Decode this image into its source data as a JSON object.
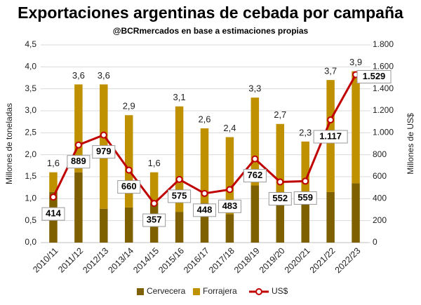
{
  "chart_data": {
    "type": "bar",
    "title": "Exportaciones argentinas de cebada por campaña",
    "subtitle": "@BCRmercados  en base a estimaciones propias",
    "y_label": "Millones de toneladas",
    "y2_label": "Millones de US$",
    "categories": [
      "2010/11",
      "2011/12",
      "2012/13",
      "2013/14",
      "2014/15",
      "2015/16",
      "2016/17",
      "2017/18",
      "2018/19",
      "2019/20",
      "2020/21",
      "2021/22",
      "2022/23"
    ],
    "series": [
      {
        "name": "Cervecera",
        "color": "#7f6000",
        "values": [
          1.15,
          1.6,
          0.77,
          0.8,
          0.9,
          0.7,
          0.9,
          0.65,
          1.3,
          0.9,
          0.9,
          1.15,
          1.35
        ]
      },
      {
        "name": "Forrajera",
        "color": "#bf9000",
        "values": [
          0.45,
          2.0,
          2.83,
          2.1,
          0.7,
          2.4,
          1.7,
          1.75,
          2.0,
          1.8,
          1.4,
          2.55,
          2.55
        ]
      },
      {
        "name": "US$",
        "color": "#c00000",
        "type": "line",
        "axis": "y2",
        "values": [
          414,
          889,
          979,
          660,
          357,
          575,
          448,
          483,
          762,
          552,
          559,
          1117,
          1529
        ],
        "value_labels": [
          "414",
          "889",
          "979",
          "660",
          "357",
          "575",
          "448",
          "483",
          "762",
          "552",
          "559",
          "1.117",
          "1.529"
        ]
      }
    ],
    "totals": {
      "values": [
        1.6,
        3.6,
        3.6,
        2.9,
        1.6,
        3.1,
        2.6,
        2.4,
        3.3,
        2.7,
        2.3,
        3.7,
        3.9
      ],
      "value_labels": [
        "1,6",
        "3,6",
        "3,6",
        "2,9",
        "1,6",
        "3,1",
        "2,6",
        "2,4",
        "3,3",
        "2,7",
        "2,3",
        "3,7",
        "3,9"
      ]
    },
    "ylim": [
      0,
      4.5
    ],
    "yticks": [
      {
        "value": 0,
        "label": "0,0"
      },
      {
        "value": 0.5,
        "label": "0,5"
      },
      {
        "value": 1,
        "label": "1,0"
      },
      {
        "value": 1.5,
        "label": "1,5"
      },
      {
        "value": 2,
        "label": "2,0"
      },
      {
        "value": 2.5,
        "label": "2,5"
      },
      {
        "value": 3,
        "label": "3,0"
      },
      {
        "value": 3.5,
        "label": "3,5"
      },
      {
        "value": 4,
        "label": "4,0"
      },
      {
        "value": 4.5,
        "label": "4,5"
      }
    ],
    "y2lim": [
      0,
      1800
    ],
    "y2ticks": [
      0,
      200,
      400,
      600,
      800,
      {
        "value": 1000,
        "label": "1.000"
      },
      {
        "value": 1200,
        "label": "1.200"
      },
      {
        "value": 1400,
        "label": "1.400"
      },
      {
        "value": 1600,
        "label": "1.600"
      },
      {
        "value": 1800,
        "label": "1.800"
      }
    ],
    "grid": true
  }
}
